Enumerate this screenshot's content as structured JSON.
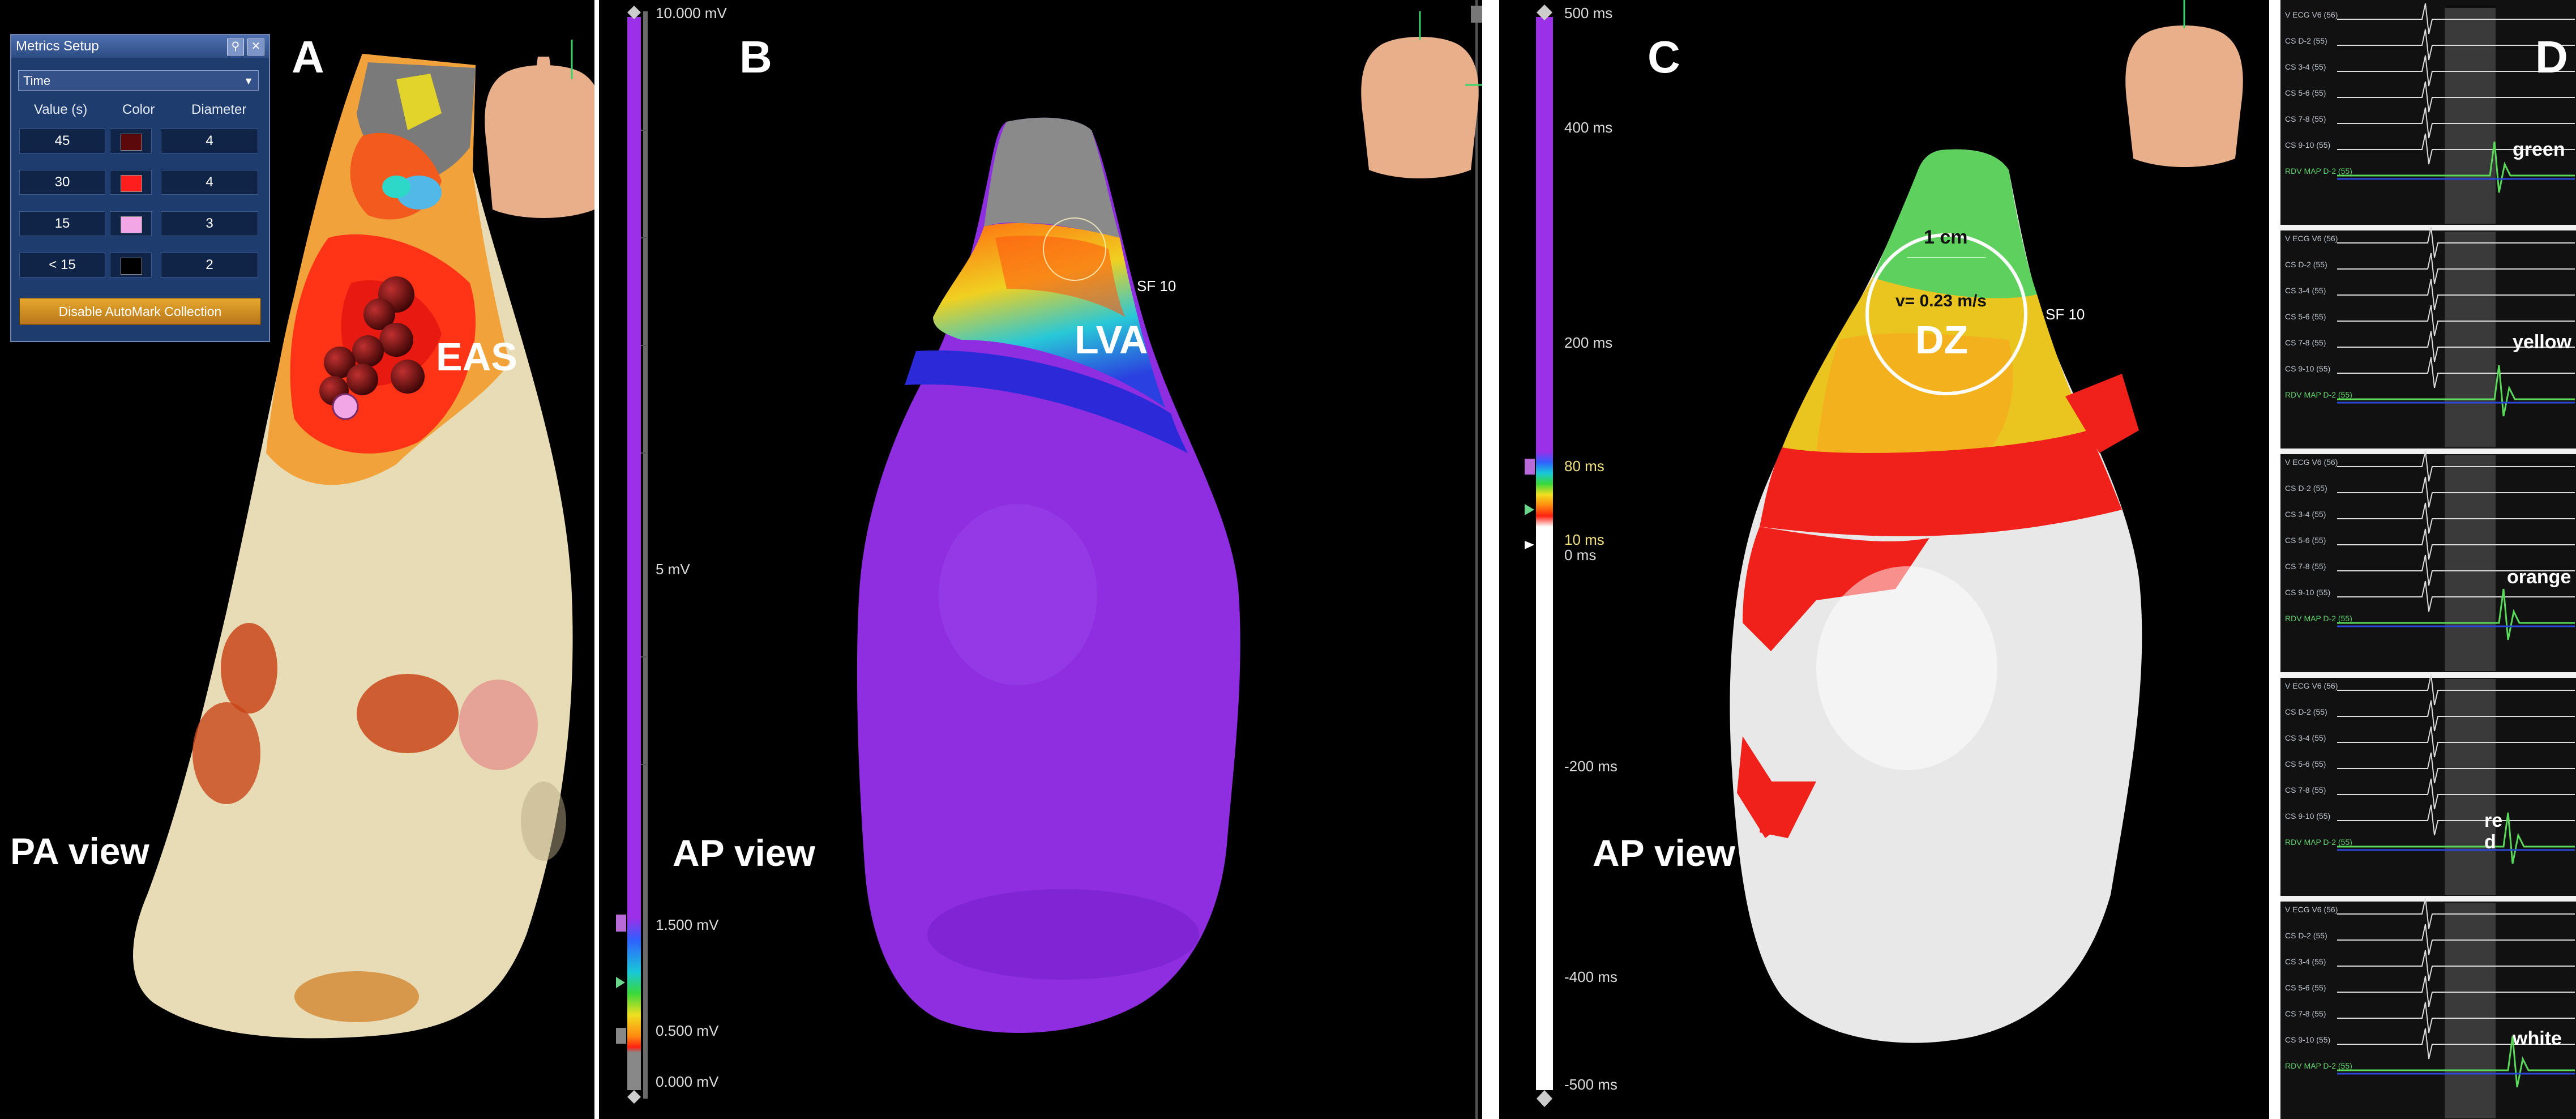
{
  "panels": {
    "A": {
      "letter": "A",
      "view_label": "PA view",
      "annotation": "EAS"
    },
    "B": {
      "letter": "B",
      "view_label": "AP view",
      "annotation": "LVA",
      "marker_label": "SF 10",
      "scale": {
        "top": "10.000 mV",
        "mid": "5 mV",
        "high": "1.500 mV",
        "low": "0.500 mV",
        "bottom": "0.000 mV"
      }
    },
    "C": {
      "letter": "C",
      "view_label": "AP view",
      "annotation": "DZ",
      "circle_label": "1 cm",
      "velocity": "v= 0.23 m/s",
      "marker_label": "SF 10",
      "scale": {
        "top": "500 ms",
        "t400": "400 ms",
        "t200": "200 ms",
        "t80": "80 ms",
        "t10": "10 ms",
        "t0": "0 ms",
        "tn200": "-200 ms",
        "tn400": "-400 ms",
        "bottom": "-500 ms"
      }
    },
    "D": {
      "letter": "D",
      "colors": [
        "green",
        "yellow",
        "orange",
        "re\nd",
        "white"
      ]
    }
  },
  "metrics_setup": {
    "title": "Metrics Setup",
    "select_value": "Time",
    "columns": [
      "Value (s)",
      "Color",
      "Diameter"
    ],
    "rows": [
      {
        "value": "45",
        "color": "#5a0a0a",
        "diameter": "4"
      },
      {
        "value": "30",
        "color": "#ff1e1e",
        "diameter": "4"
      },
      {
        "value": "15",
        "color": "#f3a6e6",
        "diameter": "3"
      },
      {
        "value": "< 15",
        "color": "#000000",
        "diameter": "2"
      }
    ],
    "button_label": "Disable AutoMark Collection"
  },
  "ecg": {
    "channels": [
      "V ECG V6 (56)",
      "CS D-2 (55)",
      "CS 3-4 (55)",
      "CS 5-6 (55)",
      "CS 7-8 (55)",
      "CS 9-10 (55)",
      "RDV MAP D-2 (55)"
    ]
  }
}
